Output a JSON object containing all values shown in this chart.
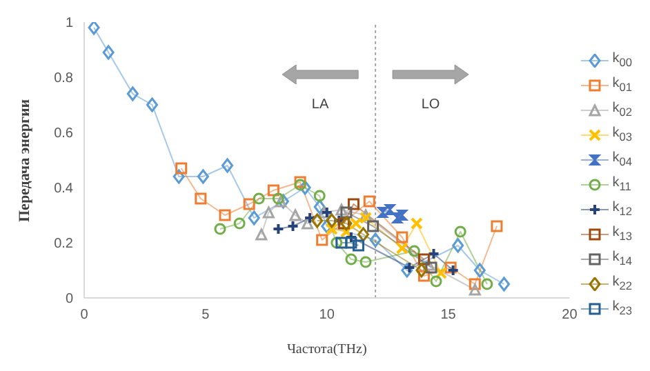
{
  "chart_data": {
    "type": "line",
    "xlabel": "Частота(THz)",
    "ylabel": "Передача энергии",
    "xlim": [
      0,
      20
    ],
    "xticks": [
      0,
      5,
      10,
      15,
      20
    ],
    "ylim": [
      0,
      1
    ],
    "yticks": [
      0,
      0.2,
      0.4,
      0.6,
      0.8,
      1
    ],
    "grid": false,
    "legend": "right",
    "ref_lines": [
      {
        "axis": "x",
        "value": 12,
        "color": "#a6a6a6",
        "line_style": "dotted"
      }
    ],
    "annotations": [
      "LA",
      "LO"
    ],
    "series": [
      {
        "name": "k$_{00}$",
        "color": "#5b9bd5",
        "marker": "diamond",
        "x": [
          0.4,
          1,
          2,
          2.8,
          3.9,
          4.9,
          5.9,
          7,
          8.2,
          9.1,
          9.7,
          10,
          12,
          13.3,
          15.4,
          16.3,
          17.3
        ],
        "values": [
          0.98,
          0.89,
          0.74,
          0.7,
          0.44,
          0.44,
          0.48,
          0.29,
          0.35,
          0.4,
          0.33,
          0.26,
          0.21,
          0.1,
          0.19,
          0.1,
          0.05
        ]
      },
      {
        "name": "k$_{01}$",
        "color": "#ed7d31",
        "marker": "square",
        "x": [
          4,
          4.8,
          5.8,
          6.8,
          7.8,
          8.9,
          9.8,
          11.75,
          13.1,
          14,
          15.1,
          16.1,
          17
        ],
        "values": [
          0.47,
          0.36,
          0.3,
          0.34,
          0.39,
          0.42,
          0.21,
          0.35,
          0.22,
          0.08,
          0.11,
          0.05,
          0.26
        ]
      },
      {
        "name": "k$_{02}$",
        "color": "#a5a5a5",
        "marker": "triangle",
        "x": [
          7.3,
          7.6,
          8.1,
          8.7,
          9.2,
          9.9,
          10.6,
          11.6,
          14.2,
          16.1
        ],
        "values": [
          0.23,
          0.31,
          0.35,
          0.3,
          0.27,
          0.31,
          0.32,
          0.3,
          0.12,
          0.03
        ]
      },
      {
        "name": "k$_{03}$",
        "color": "#ffc000",
        "marker": "x",
        "x": [
          10.2,
          10.8,
          11.2,
          11.6,
          13.1,
          13.7,
          14.7
        ],
        "values": [
          0.25,
          0.24,
          0.27,
          0.29,
          0.18,
          0.27,
          0.09
        ]
      },
      {
        "name": "k$_{04}$",
        "color": "#4472c4",
        "marker": "star",
        "x": [
          12.3,
          12.6,
          12.9,
          13.1
        ],
        "values": [
          0.31,
          0.32,
          0.29,
          0.3
        ]
      },
      {
        "name": "k$_{11}$",
        "color": "#70ad47",
        "marker": "circle",
        "x": [
          5.6,
          6.4,
          7.2,
          8,
          8.9,
          9.7,
          10.4,
          11,
          11.6,
          13.6,
          14.5,
          15.5,
          16.6
        ],
        "values": [
          0.25,
          0.27,
          0.36,
          0.36,
          0.41,
          0.37,
          0.2,
          0.14,
          0.13,
          0.17,
          0.06,
          0.24,
          0.05
        ]
      },
      {
        "name": "k$_{12}$",
        "color": "#264478",
        "marker": "cross",
        "x": [
          8,
          8.6,
          9.3,
          10,
          10.5,
          11,
          13.4,
          14.4,
          15.2
        ],
        "values": [
          0.25,
          0.26,
          0.29,
          0.31,
          0.28,
          0.22,
          0.11,
          0.16,
          0.1
        ]
      },
      {
        "name": "k$_{13}$",
        "color": "#9e480e",
        "marker": "square",
        "x": [
          10.7,
          11.1,
          14
        ],
        "values": [
          0.27,
          0.34,
          0.14
        ]
      },
      {
        "name": "k$_{14}$",
        "color": "#636363",
        "marker": "square",
        "x": [
          10.8,
          11.9,
          14.3
        ],
        "values": [
          0.31,
          0.26,
          0.11
        ]
      },
      {
        "name": "k$_{22}$",
        "color": "#997300",
        "marker": "diamond",
        "x": [
          9.6,
          10.2,
          10.8,
          11.5,
          13.9
        ],
        "values": [
          0.28,
          0.28,
          0.27,
          0.23,
          0.1
        ]
      },
      {
        "name": "k$_{23}$",
        "color": "#255e91",
        "marker": "square",
        "x": [
          10.6,
          11,
          11.3
        ],
        "values": [
          0.2,
          0.2,
          0.19
        ]
      }
    ]
  }
}
